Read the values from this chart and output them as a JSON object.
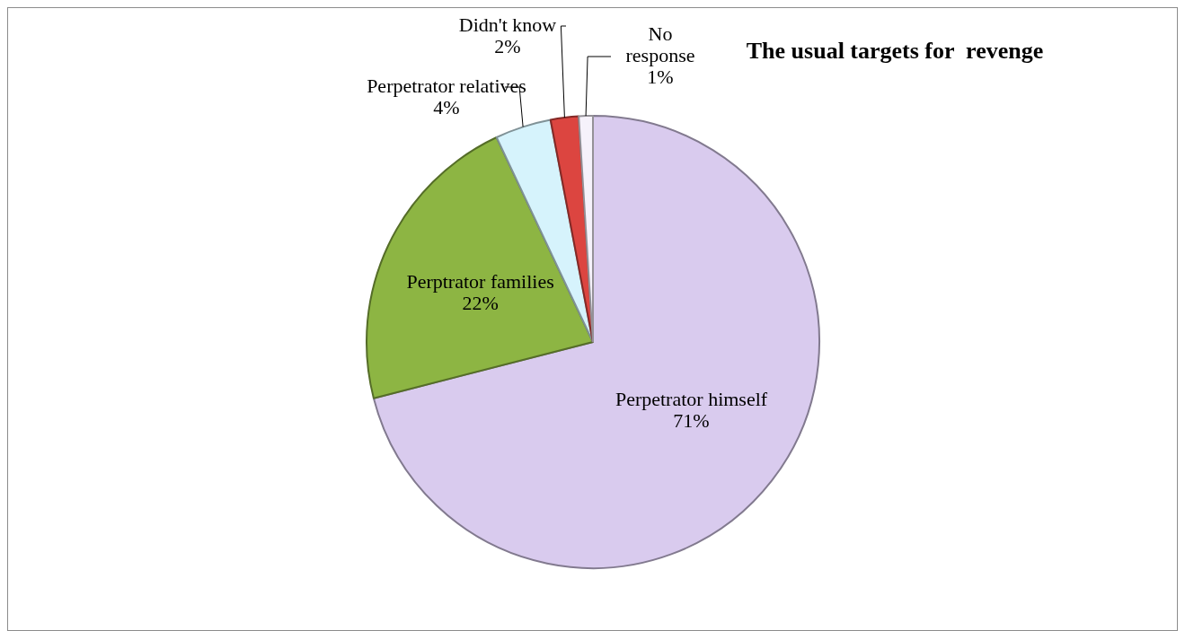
{
  "chart_data": {
    "type": "pie",
    "title": "The usual targets for  revenge",
    "categories": [
      "Perpetrator himself",
      "Perptrator families",
      "Perpetrator relatives",
      "Didn't know",
      "No response"
    ],
    "values": [
      71,
      22,
      4,
      2,
      1
    ],
    "value_labels": [
      "71%",
      "22%",
      "4%",
      "2%",
      "1%"
    ],
    "colors": [
      "#d9cbee",
      "#8db543",
      "#d6f3fc",
      "#dc4540",
      "#f6f2fb"
    ],
    "legend": false
  }
}
